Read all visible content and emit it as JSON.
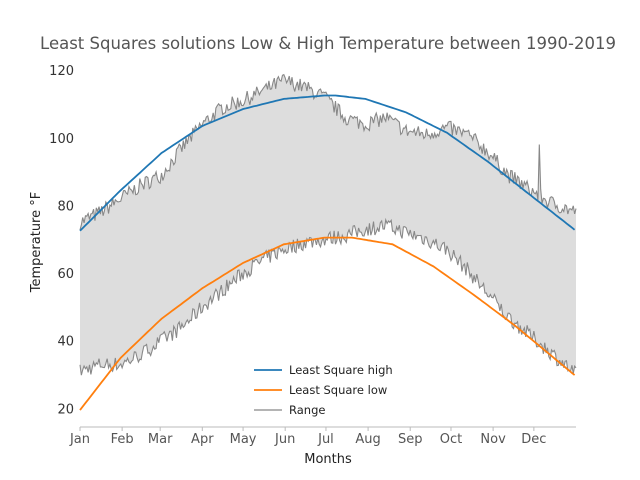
{
  "chart_data": {
    "type": "line",
    "title": "Least Squares solutions Low & High Temperature between 1990-2019",
    "xlabel": "Months",
    "ylabel": "Temperature °F",
    "x_ticks": [
      "Jan",
      "Feb",
      "Mar",
      "Apr",
      "May",
      "Jun",
      "Jul",
      "Aug",
      "Sep",
      "Oct",
      "Nov",
      "Dec"
    ],
    "x_tick_days": [
      0,
      31,
      59,
      90,
      120,
      151,
      181,
      212,
      243,
      273,
      304,
      334
    ],
    "xlim": [
      0,
      365
    ],
    "ylim": [
      14.5,
      123
    ],
    "y_ticks": [
      20,
      40,
      60,
      80,
      100,
      120
    ],
    "grid": false,
    "legend_position": "lower center",
    "series": [
      {
        "name": "Least Square high",
        "color": "#1f77b4",
        "x": [
          0,
          30,
          60,
          90,
          120,
          150,
          180,
          188,
          210,
          240,
          270,
          300,
          330,
          365
        ],
        "values": [
          72.5,
          84.5,
          95.5,
          103.5,
          108.5,
          111.5,
          112.5,
          112.5,
          111.5,
          107.5,
          101.5,
          93,
          83.5,
          72.5
        ]
      },
      {
        "name": "Least Square low",
        "color": "#ff7f0e",
        "x": [
          0,
          30,
          60,
          90,
          120,
          150,
          180,
          200,
          230,
          260,
          290,
          320,
          350,
          365
        ],
        "values": [
          19.5,
          35,
          46.5,
          55.5,
          63,
          68.5,
          70.5,
          70.5,
          68.5,
          62,
          53.5,
          44.5,
          34.5,
          29.5
        ]
      },
      {
        "name": "Range",
        "color": "#888888",
        "fill": "#dddddd",
        "high_x": [
          0,
          15,
          30,
          45,
          60,
          75,
          90,
          105,
          120,
          135,
          150,
          165,
          180,
          195,
          210,
          225,
          240,
          255,
          270,
          285,
          300,
          315,
          330,
          345,
          365
        ],
        "high_values": [
          75,
          78,
          82,
          86,
          89,
          97,
          104,
          109,
          111,
          114,
          117,
          115,
          112,
          106,
          104,
          106,
          102,
          101,
          103,
          101,
          96,
          89,
          85,
          81,
          78
        ],
        "low_x": [
          0,
          15,
          30,
          45,
          60,
          75,
          90,
          105,
          120,
          135,
          150,
          165,
          180,
          195,
          210,
          225,
          240,
          255,
          270,
          285,
          300,
          315,
          330,
          345,
          365
        ],
        "low_values": [
          31,
          33,
          33,
          36,
          40,
          44,
          50,
          55,
          60,
          64,
          67,
          69,
          70,
          71,
          73,
          74,
          72,
          70,
          67,
          61,
          54,
          47,
          42,
          37,
          30
        ]
      }
    ]
  }
}
